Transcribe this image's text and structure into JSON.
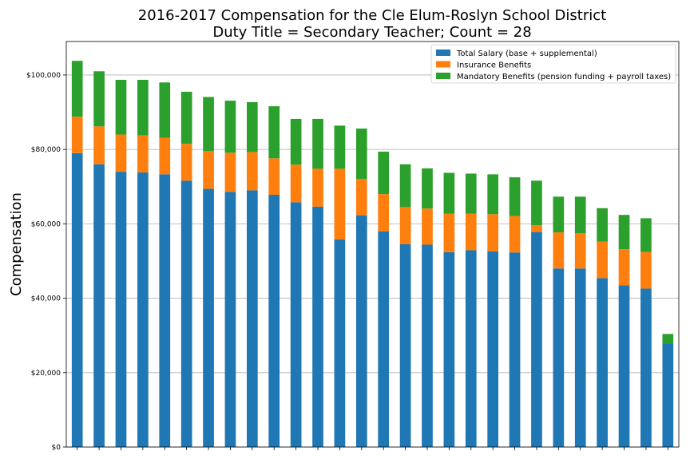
{
  "chart_data": {
    "type": "bar",
    "stacked": true,
    "title": "2016-2017 Compensation for the Cle Elum-Roslyn School District",
    "subtitle": "Duty Title = Secondary Teacher; Count = 28",
    "xlabel": "",
    "ylabel": "Compensation",
    "ylim": [
      0,
      109000
    ],
    "yticks": [
      0,
      20000,
      40000,
      60000,
      80000,
      100000
    ],
    "ytick_labels": [
      "$0",
      "$20,000",
      "$40,000",
      "$60,000",
      "$80,000",
      "$100,000"
    ],
    "grid": "horizontal",
    "legend_position": "top-right",
    "series": [
      {
        "name": "Total Salary (base + supplemental)",
        "color": "#1f77b4",
        "values": [
          79000,
          76000,
          74000,
          73800,
          73300,
          71600,
          69400,
          68600,
          69000,
          67800,
          65800,
          64600,
          55800,
          62300,
          58000,
          54500,
          54400,
          52400,
          52900,
          52600,
          52300,
          57800,
          48000,
          48000,
          45400,
          43500,
          42600,
          27800
        ]
      },
      {
        "name": "Insurance Benefits",
        "color": "#ff7f0e",
        "values": [
          9800,
          10200,
          10000,
          10000,
          9800,
          9900,
          10200,
          10500,
          10300,
          9800,
          10100,
          10200,
          19000,
          9800,
          10000,
          10000,
          9700,
          10300,
          9800,
          10000,
          9800,
          1800,
          9700,
          9500,
          9800,
          9700,
          9800,
          0
        ]
      },
      {
        "name": "Mandatory Benefits (pension funding + payroll taxes)",
        "color": "#2ca02c",
        "values": [
          15000,
          14800,
          14700,
          14900,
          14900,
          14000,
          14500,
          14000,
          13400,
          14000,
          12300,
          13400,
          11600,
          13500,
          11400,
          11500,
          10800,
          11000,
          10800,
          10700,
          10400,
          12000,
          9600,
          9800,
          9000,
          9200,
          9100,
          2600
        ]
      }
    ]
  }
}
